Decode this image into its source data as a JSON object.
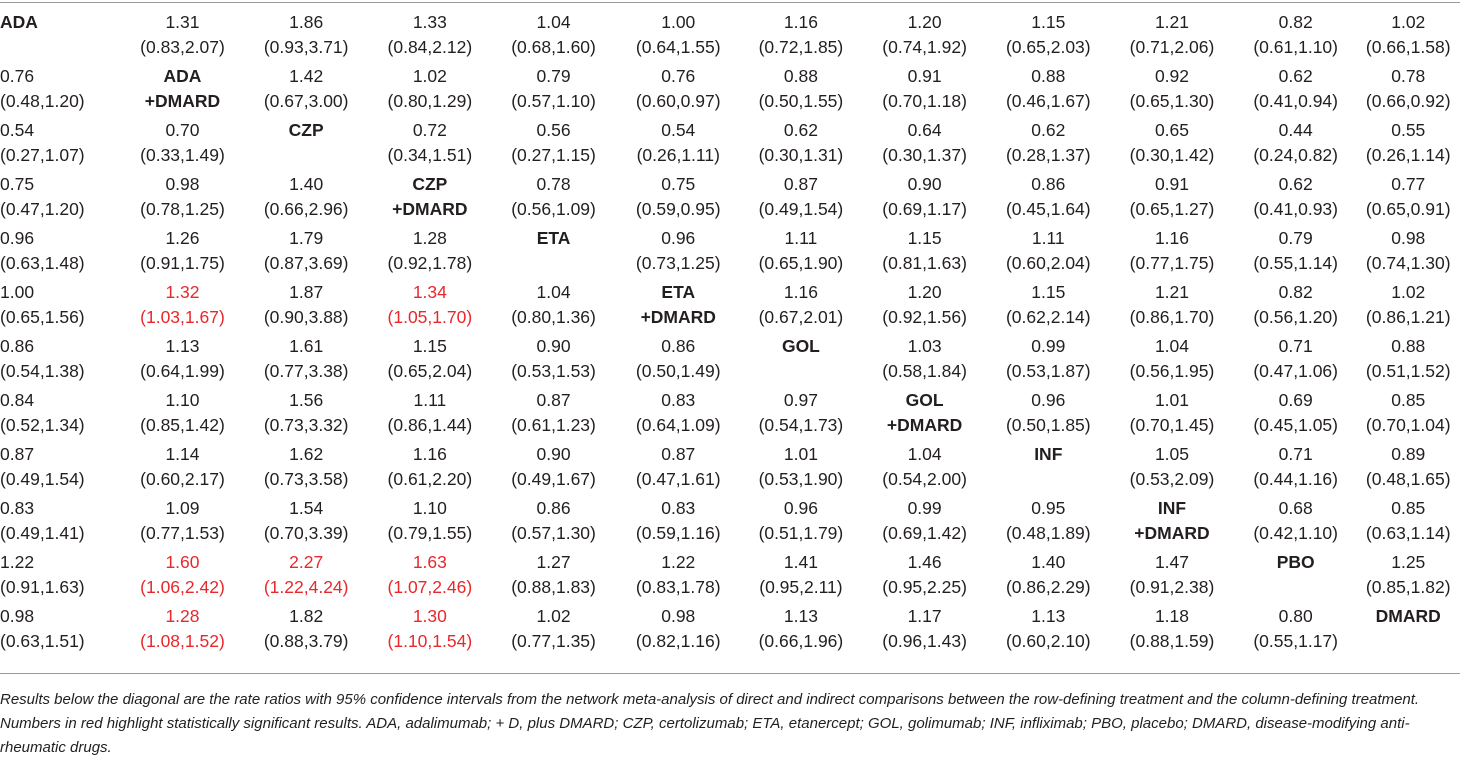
{
  "treatments": [
    [
      "ADA"
    ],
    [
      "ADA",
      "+DMARD"
    ],
    [
      "CZP"
    ],
    [
      "CZP",
      "+DMARD"
    ],
    [
      "ETA"
    ],
    [
      "ETA",
      "+DMARD"
    ],
    [
      "GOL"
    ],
    [
      "GOL",
      "+DMARD"
    ],
    [
      "INF"
    ],
    [
      "INF",
      "+DMARD"
    ],
    [
      "PBO"
    ],
    [
      "DMARD"
    ]
  ],
  "matrix": [
    [
      null,
      {
        "v": "1.31",
        "ci": "(0.83,2.07)"
      },
      {
        "v": "1.86",
        "ci": "(0.93,3.71)"
      },
      {
        "v": "1.33",
        "ci": "(0.84,2.12)"
      },
      {
        "v": "1.04",
        "ci": "(0.68,1.60)"
      },
      {
        "v": "1.00",
        "ci": "(0.64,1.55)"
      },
      {
        "v": "1.16",
        "ci": "(0.72,1.85)"
      },
      {
        "v": "1.20",
        "ci": "(0.74,1.92)"
      },
      {
        "v": "1.15",
        "ci": "(0.65,2.03)"
      },
      {
        "v": "1.21",
        "ci": "(0.71,2.06)"
      },
      {
        "v": "0.82",
        "ci": "(0.61,1.10)"
      },
      {
        "v": "1.02",
        "ci": "(0.66,1.58)"
      }
    ],
    [
      {
        "v": "0.76",
        "ci": "(0.48,1.20)"
      },
      null,
      {
        "v": "1.42",
        "ci": "(0.67,3.00)"
      },
      {
        "v": "1.02",
        "ci": "(0.80,1.29)"
      },
      {
        "v": "0.79",
        "ci": "(0.57,1.10)"
      },
      {
        "v": "0.76",
        "ci": "(0.60,0.97)"
      },
      {
        "v": "0.88",
        "ci": "(0.50,1.55)"
      },
      {
        "v": "0.91",
        "ci": "(0.70,1.18)"
      },
      {
        "v": "0.88",
        "ci": "(0.46,1.67)"
      },
      {
        "v": "0.92",
        "ci": "(0.65,1.30)"
      },
      {
        "v": "0.62",
        "ci": "(0.41,0.94)"
      },
      {
        "v": "0.78",
        "ci": "(0.66,0.92)"
      }
    ],
    [
      {
        "v": "0.54",
        "ci": "(0.27,1.07)"
      },
      {
        "v": "0.70",
        "ci": "(0.33,1.49)"
      },
      null,
      {
        "v": "0.72",
        "ci": "(0.34,1.51)"
      },
      {
        "v": "0.56",
        "ci": "(0.27,1.15)"
      },
      {
        "v": "0.54",
        "ci": "(0.26,1.11)"
      },
      {
        "v": "0.62",
        "ci": "(0.30,1.31)"
      },
      {
        "v": "0.64",
        "ci": "(0.30,1.37)"
      },
      {
        "v": "0.62",
        "ci": "(0.28,1.37)"
      },
      {
        "v": "0.65",
        "ci": "(0.30,1.42)"
      },
      {
        "v": "0.44",
        "ci": "(0.24,0.82)"
      },
      {
        "v": "0.55",
        "ci": "(0.26,1.14)"
      }
    ],
    [
      {
        "v": "0.75",
        "ci": "(0.47,1.20)"
      },
      {
        "v": "0.98",
        "ci": "(0.78,1.25)"
      },
      {
        "v": "1.40",
        "ci": "(0.66,2.96)"
      },
      null,
      {
        "v": "0.78",
        "ci": "(0.56,1.09)"
      },
      {
        "v": "0.75",
        "ci": "(0.59,0.95)"
      },
      {
        "v": "0.87",
        "ci": "(0.49,1.54)"
      },
      {
        "v": "0.90",
        "ci": "(0.69,1.17)"
      },
      {
        "v": "0.86",
        "ci": "(0.45,1.64)"
      },
      {
        "v": "0.91",
        "ci": "(0.65,1.27)"
      },
      {
        "v": "0.62",
        "ci": "(0.41,0.93)"
      },
      {
        "v": "0.77",
        "ci": "(0.65,0.91)"
      }
    ],
    [
      {
        "v": "0.96",
        "ci": "(0.63,1.48)"
      },
      {
        "v": "1.26",
        "ci": "(0.91,1.75)"
      },
      {
        "v": "1.79",
        "ci": "(0.87,3.69)"
      },
      {
        "v": "1.28",
        "ci": "(0.92,1.78)"
      },
      null,
      {
        "v": "0.96",
        "ci": "(0.73,1.25)"
      },
      {
        "v": "1.11",
        "ci": "(0.65,1.90)"
      },
      {
        "v": "1.15",
        "ci": "(0.81,1.63)"
      },
      {
        "v": "1.11",
        "ci": "(0.60,2.04)"
      },
      {
        "v": "1.16",
        "ci": "(0.77,1.75)"
      },
      {
        "v": "0.79",
        "ci": "(0.55,1.14)"
      },
      {
        "v": "0.98",
        "ci": "(0.74,1.30)"
      }
    ],
    [
      {
        "v": "1.00",
        "ci": "(0.65,1.56)"
      },
      {
        "v": "1.32",
        "ci": "(1.03,1.67)",
        "sig": true
      },
      {
        "v": "1.87",
        "ci": "(0.90,3.88)"
      },
      {
        "v": "1.34",
        "ci": "(1.05,1.70)",
        "sig": true
      },
      {
        "v": "1.04",
        "ci": "(0.80,1.36)"
      },
      null,
      {
        "v": "1.16",
        "ci": "(0.67,2.01)"
      },
      {
        "v": "1.20",
        "ci": "(0.92,1.56)"
      },
      {
        "v": "1.15",
        "ci": "(0.62,2.14)"
      },
      {
        "v": "1.21",
        "ci": "(0.86,1.70)"
      },
      {
        "v": "0.82",
        "ci": "(0.56,1.20)"
      },
      {
        "v": "1.02",
        "ci": "(0.86,1.21)"
      }
    ],
    [
      {
        "v": "0.86",
        "ci": "(0.54,1.38)"
      },
      {
        "v": "1.13",
        "ci": "(0.64,1.99)"
      },
      {
        "v": "1.61",
        "ci": "(0.77,3.38)"
      },
      {
        "v": "1.15",
        "ci": "(0.65,2.04)"
      },
      {
        "v": "0.90",
        "ci": "(0.53,1.53)"
      },
      {
        "v": "0.86",
        "ci": "(0.50,1.49)"
      },
      null,
      {
        "v": "1.03",
        "ci": "(0.58,1.84)"
      },
      {
        "v": "0.99",
        "ci": "(0.53,1.87)"
      },
      {
        "v": "1.04",
        "ci": "(0.56,1.95)"
      },
      {
        "v": "0.71",
        "ci": "(0.47,1.06)"
      },
      {
        "v": "0.88",
        "ci": "(0.51,1.52)"
      }
    ],
    [
      {
        "v": "0.84",
        "ci": "(0.52,1.34)"
      },
      {
        "v": "1.10",
        "ci": "(0.85,1.42)"
      },
      {
        "v": "1.56",
        "ci": "(0.73,3.32)"
      },
      {
        "v": "1.11",
        "ci": "(0.86,1.44)"
      },
      {
        "v": "0.87",
        "ci": "(0.61,1.23)"
      },
      {
        "v": "0.83",
        "ci": "(0.64,1.09)"
      },
      {
        "v": "0.97",
        "ci": "(0.54,1.73)"
      },
      null,
      {
        "v": "0.96",
        "ci": "(0.50,1.85)"
      },
      {
        "v": "1.01",
        "ci": "(0.70,1.45)"
      },
      {
        "v": "0.69",
        "ci": "(0.45,1.05)"
      },
      {
        "v": "0.85",
        "ci": "(0.70,1.04)"
      }
    ],
    [
      {
        "v": "0.87",
        "ci": "(0.49,1.54)"
      },
      {
        "v": "1.14",
        "ci": "(0.60,2.17)"
      },
      {
        "v": "1.62",
        "ci": "(0.73,3.58)"
      },
      {
        "v": "1.16",
        "ci": "(0.61,2.20)"
      },
      {
        "v": "0.90",
        "ci": "(0.49,1.67)"
      },
      {
        "v": "0.87",
        "ci": "(0.47,1.61)"
      },
      {
        "v": "1.01",
        "ci": "(0.53,1.90)"
      },
      {
        "v": "1.04",
        "ci": "(0.54,2.00)"
      },
      null,
      {
        "v": "1.05",
        "ci": "(0.53,2.09)"
      },
      {
        "v": "0.71",
        "ci": "(0.44,1.16)"
      },
      {
        "v": "0.89",
        "ci": "(0.48,1.65)"
      }
    ],
    [
      {
        "v": "0.83",
        "ci": "(0.49,1.41)"
      },
      {
        "v": "1.09",
        "ci": "(0.77,1.53)"
      },
      {
        "v": "1.54",
        "ci": "(0.70,3.39)"
      },
      {
        "v": "1.10",
        "ci": "(0.79,1.55)"
      },
      {
        "v": "0.86",
        "ci": "(0.57,1.30)"
      },
      {
        "v": "0.83",
        "ci": "(0.59,1.16)"
      },
      {
        "v": "0.96",
        "ci": "(0.51,1.79)"
      },
      {
        "v": "0.99",
        "ci": "(0.69,1.42)"
      },
      {
        "v": "0.95",
        "ci": "(0.48,1.89)"
      },
      null,
      {
        "v": "0.68",
        "ci": "(0.42,1.10)"
      },
      {
        "v": "0.85",
        "ci": "(0.63,1.14)"
      }
    ],
    [
      {
        "v": "1.22",
        "ci": "(0.91,1.63)"
      },
      {
        "v": "1.60",
        "ci": "(1.06,2.42)",
        "sig": true
      },
      {
        "v": "2.27",
        "ci": "(1.22,4.24)",
        "sig": true
      },
      {
        "v": "1.63",
        "ci": "(1.07,2.46)",
        "sig": true
      },
      {
        "v": "1.27",
        "ci": "(0.88,1.83)"
      },
      {
        "v": "1.22",
        "ci": "(0.83,1.78)"
      },
      {
        "v": "1.41",
        "ci": "(0.95,2.11)"
      },
      {
        "v": "1.46",
        "ci": "(0.95,2.25)"
      },
      {
        "v": "1.40",
        "ci": "(0.86,2.29)"
      },
      {
        "v": "1.47",
        "ci": "(0.91,2.38)"
      },
      null,
      {
        "v": "1.25",
        "ci": "(0.85,1.82)"
      }
    ],
    [
      {
        "v": "0.98",
        "ci": "(0.63,1.51)"
      },
      {
        "v": "1.28",
        "ci": "(1.08,1.52)",
        "sig": true
      },
      {
        "v": "1.82",
        "ci": "(0.88,3.79)"
      },
      {
        "v": "1.30",
        "ci": "(1.10,1.54)",
        "sig": true
      },
      {
        "v": "1.02",
        "ci": "(0.77,1.35)"
      },
      {
        "v": "0.98",
        "ci": "(0.82,1.16)"
      },
      {
        "v": "1.13",
        "ci": "(0.66,1.96)"
      },
      {
        "v": "1.17",
        "ci": "(0.96,1.43)"
      },
      {
        "v": "1.13",
        "ci": "(0.60,2.10)"
      },
      {
        "v": "1.18",
        "ci": "(0.88,1.59)"
      },
      {
        "v": "0.80",
        "ci": "(0.55,1.17)"
      },
      null
    ]
  ],
  "caption": "Results below the diagonal are the rate ratios with 95% confidence intervals from the network meta-analysis of direct and indirect comparisons between the row-defining treatment and the column-defining treatment. Numbers in red highlight statistically significant results. ADA, adalimumab; + D, plus DMARD; CZP, certolizumab; ETA, etanercept; GOL, golimumab; INF, infliximab; PBO, placebo; DMARD, disease-modifying anti-rheumatic drugs.",
  "colors": {
    "text": "#231f20",
    "significant": "#e8282b",
    "rule": "#9a9a9a"
  }
}
